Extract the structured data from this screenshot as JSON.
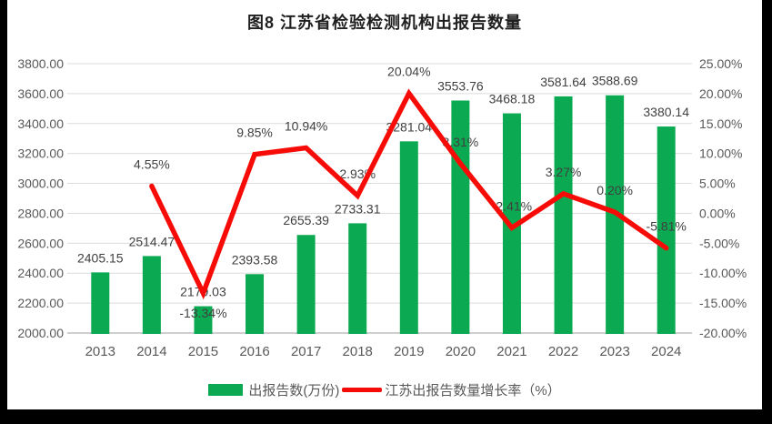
{
  "title": "图8  江苏省检验检测机构出报告数量",
  "colors": {
    "bar": "#0baa52",
    "line": "#f60b06",
    "gridline": "#dcdcdc",
    "axis_line": "#bfbfbf",
    "axis_text": "#595959",
    "data_label": "#404040",
    "title_text": "#1f1f1f"
  },
  "chart_data": {
    "type": "bar",
    "subtype": "combo-bar-line",
    "title": "图8  江苏省检验检测机构出报告数量",
    "categories": [
      "2013",
      "2014",
      "2015",
      "2016",
      "2017",
      "2018",
      "2019",
      "2020",
      "2021",
      "2022",
      "2023",
      "2024"
    ],
    "grid": true,
    "legend_position": "bottom",
    "left_axis": {
      "min": 2000,
      "max": 3800,
      "step": 200,
      "tick_labels": [
        "3800.00",
        "3600.00",
        "3400.00",
        "3200.00",
        "3000.00",
        "2800.00",
        "2600.00",
        "2400.00",
        "2200.00",
        "2000.00"
      ]
    },
    "right_axis": {
      "min": -20,
      "max": 25,
      "step": 5,
      "tick_labels": [
        "25.00%",
        "20.00%",
        "15.00%",
        "10.00%",
        "5.00%",
        "0.00%",
        "-5.00%",
        "-10.00%",
        "-15.00%",
        "-20.00%"
      ]
    },
    "series": [
      {
        "name": "出报告数(万份)",
        "type": "bar",
        "axis": "left",
        "color": "#0baa52",
        "values": [
          2405.15,
          2514.47,
          2179.03,
          2393.58,
          2655.39,
          2733.31,
          3281.04,
          3553.76,
          3468.18,
          3581.64,
          3588.69,
          3380.14
        ],
        "labels": [
          "2405.15",
          "2514.47",
          "2179.03",
          "2393.58",
          "2655.39",
          "2733.31",
          "3281.04",
          "3553.76",
          "3468.18",
          "3581.64",
          "3588.69",
          "3380.14"
        ]
      },
      {
        "name": "江苏出报告数量增长率（%）",
        "type": "line",
        "axis": "right",
        "color": "#f60b06",
        "x_start_index": 1,
        "values": [
          4.55,
          -13.34,
          9.85,
          10.94,
          2.93,
          20.04,
          8.31,
          -2.41,
          3.27,
          0.2,
          -5.81
        ],
        "labels": [
          "4.55%",
          "-13.34%",
          "9.85%",
          "10.94%",
          "2.93%",
          "20.04%",
          "8.31%",
          "-2.41%",
          "3.27%",
          "0.20%",
          "-5.81%"
        ],
        "label_positions": [
          "above",
          "below",
          "above",
          "above",
          "above",
          "above",
          "above",
          "above",
          "above",
          "above",
          "above"
        ]
      }
    ]
  }
}
